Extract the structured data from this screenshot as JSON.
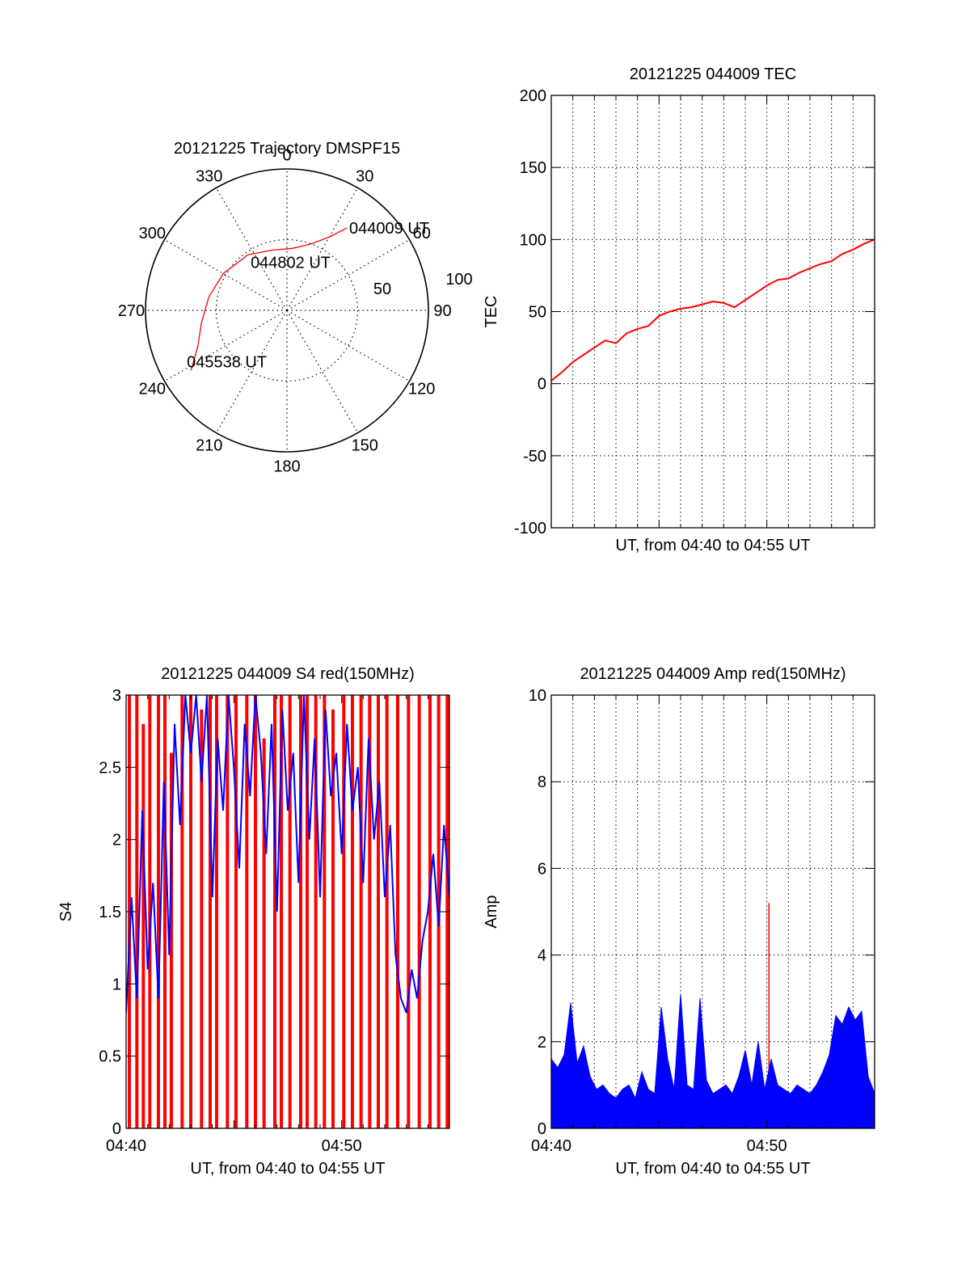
{
  "colors": {
    "red": "#ff0000",
    "blue": "#0000ff",
    "axis": "#000000",
    "grid": "#000000"
  },
  "chart_data": [
    {
      "id": "trajectory",
      "type": "polar",
      "title": "20121225 Trajectory DMSPF15",
      "azimuth_labels": [
        "0",
        "30",
        "60",
        "90",
        "120",
        "150",
        "180",
        "210",
        "240",
        "270",
        "300",
        "330"
      ],
      "azimuths_deg": [
        0,
        30,
        60,
        90,
        120,
        150,
        180,
        210,
        240,
        270,
        300,
        330
      ],
      "zenith_rings_deg": [
        50,
        100
      ],
      "ring_labels": [
        "50",
        "100"
      ],
      "zenith_max_deg": 100,
      "grid": true,
      "series": {
        "color": "#ff0000",
        "points": [
          {
            "az": 36,
            "zen": 72
          },
          {
            "az": 30,
            "zen": 60
          },
          {
            "az": 20,
            "zen": 50
          },
          {
            "az": 5,
            "zen": 44
          },
          {
            "az": 345,
            "zen": 44
          },
          {
            "az": 325,
            "zen": 48
          },
          {
            "az": 300,
            "zen": 52
          },
          {
            "az": 280,
            "zen": 56
          },
          {
            "az": 262,
            "zen": 61
          },
          {
            "az": 248,
            "zen": 68
          },
          {
            "az": 238,
            "zen": 80
          }
        ]
      },
      "annotations": [
        {
          "text": "044009 UT",
          "az": 36,
          "zen": 72
        },
        {
          "text": "044802 UT",
          "az": 10,
          "zen": 20
        },
        {
          "text": "045538 UT",
          "az": 236,
          "zen": 64
        }
      ]
    },
    {
      "id": "tec",
      "type": "line",
      "title": "20121225 044009 TEC",
      "xlabel": "UT, from 04:40 to 04:55 UT",
      "ylabel": "TEC",
      "xlim": [
        0,
        15
      ],
      "ylim": [
        -100,
        200
      ],
      "yticks": [
        -100,
        -50,
        0,
        50,
        100,
        150,
        200
      ],
      "xtick_labels": [],
      "grid": true,
      "series": [
        {
          "color": "#ff0000",
          "x": [
            0,
            0.5,
            1,
            1.5,
            2,
            2.5,
            3,
            3.5,
            4,
            4.5,
            5,
            5.5,
            6,
            6.5,
            7,
            7.5,
            8,
            8.5,
            9,
            9.5,
            10,
            10.5,
            11,
            11.5,
            12,
            12.5,
            13,
            13.5,
            14,
            14.5,
            15
          ],
          "y": [
            2,
            8,
            15,
            20,
            25,
            30,
            28,
            35,
            38,
            40,
            47,
            50,
            52,
            53,
            55,
            57,
            56,
            53,
            58,
            63,
            68,
            72,
            73,
            77,
            80,
            83,
            85,
            90,
            93,
            97,
            100
          ]
        }
      ]
    },
    {
      "id": "s4",
      "type": "line",
      "title": "20121225 044009 S4 red(150MHz)",
      "xlabel": "UT, from 04:40 to 04:55 UT",
      "ylabel": "S4",
      "xlim": [
        0,
        15
      ],
      "ylim": [
        0,
        3
      ],
      "yticks": [
        0,
        0.5,
        1,
        1.5,
        2,
        2.5,
        3
      ],
      "xtick_labels": [
        "04:40",
        "04:50"
      ],
      "xtick_values": [
        0,
        10
      ],
      "grid": false,
      "series": [
        {
          "color": "#ff0000",
          "x": [
            0.15,
            0.5,
            0.8,
            1.1,
            1.5,
            1.8,
            2.1,
            2.6,
            3.0,
            3.5,
            3.9,
            4.2,
            4.7,
            5.1,
            5.6,
            6.0,
            6.4,
            6.9,
            7.2,
            7.6,
            8.1,
            8.4,
            8.8,
            9.2,
            9.6,
            10.1,
            10.5,
            10.9,
            11.3,
            11.7,
            12.1,
            12.6,
            13.1,
            13.6,
            14.1,
            14.5,
            14.9
          ],
          "y": [
            3,
            3,
            2.8,
            3,
            3,
            3,
            2.6,
            3,
            3,
            2.9,
            3,
            3,
            3,
            3,
            3,
            3,
            2.7,
            3,
            3,
            3,
            3,
            3,
            3,
            3,
            2.9,
            3,
            3,
            3,
            3,
            3,
            3,
            3,
            3,
            3,
            3,
            3,
            3
          ]
        },
        {
          "color": "#0000ff",
          "x": [
            0,
            0.25,
            0.5,
            0.75,
            1,
            1.25,
            1.5,
            1.75,
            2,
            2.25,
            2.5,
            2.75,
            3,
            3.25,
            3.5,
            3.75,
            4,
            4.25,
            4.5,
            4.75,
            5,
            5.25,
            5.5,
            5.75,
            6,
            6.25,
            6.5,
            6.75,
            7,
            7.25,
            7.5,
            7.75,
            8,
            8.25,
            8.5,
            8.75,
            9,
            9.25,
            9.5,
            9.75,
            10,
            10.25,
            10.5,
            10.75,
            11,
            11.25,
            11.5,
            11.75,
            12,
            12.25,
            12.5,
            12.75,
            13,
            13.25,
            13.5,
            13.75,
            14,
            14.25,
            14.5,
            14.75,
            15
          ],
          "y": [
            0.8,
            1.6,
            0.9,
            2.2,
            1.1,
            1.7,
            0.9,
            2.4,
            1.2,
            2.8,
            2.1,
            3.0,
            2.6,
            3.0,
            2.4,
            3.0,
            1.6,
            2.7,
            2.2,
            3.0,
            2.5,
            1.8,
            2.8,
            2.3,
            3.0,
            2.6,
            1.9,
            2.8,
            1.5,
            2.9,
            2.2,
            2.6,
            1.7,
            3.0,
            2.0,
            2.7,
            1.6,
            2.9,
            2.3,
            2.6,
            1.9,
            2.8,
            2.2,
            2.5,
            1.7,
            2.7,
            2.0,
            2.4,
            1.6,
            2.1,
            1.2,
            0.9,
            0.8,
            1.1,
            0.9,
            1.3,
            1.5,
            1.9,
            1.4,
            2.1,
            1.6
          ]
        }
      ]
    },
    {
      "id": "amp",
      "type": "line",
      "title": "20121225 044009 Amp red(150MHz)",
      "xlabel": "UT, from 04:40 to 04:55 UT",
      "ylabel": "Amp",
      "xlim": [
        0,
        15
      ],
      "ylim": [
        0,
        10
      ],
      "yticks": [
        0,
        2,
        4,
        6,
        8,
        10
      ],
      "xtick_labels": [
        "04:40",
        "04:50"
      ],
      "xtick_values": [
        0,
        10
      ],
      "grid": true,
      "series": [
        {
          "color": "#ff0000",
          "x": [
            10.1,
            10.1
          ],
          "y": [
            0,
            5.2
          ]
        },
        {
          "color": "#0000ff",
          "x": [
            0,
            0.3,
            0.6,
            0.9,
            1.2,
            1.5,
            1.8,
            2.1,
            2.4,
            2.7,
            3.0,
            3.3,
            3.6,
            3.9,
            4.2,
            4.5,
            4.8,
            5.1,
            5.4,
            5.7,
            6.0,
            6.3,
            6.6,
            6.9,
            7.2,
            7.5,
            7.8,
            8.1,
            8.4,
            8.7,
            9.0,
            9.3,
            9.6,
            9.9,
            10.2,
            10.5,
            10.8,
            11.1,
            11.4,
            11.7,
            12.0,
            12.3,
            12.6,
            12.9,
            13.2,
            13.5,
            13.8,
            14.1,
            14.4,
            14.7,
            15.0
          ],
          "y": [
            1.6,
            1.4,
            1.7,
            2.9,
            1.5,
            1.9,
            1.2,
            0.9,
            1.0,
            0.8,
            0.7,
            0.9,
            1.0,
            0.7,
            1.3,
            0.9,
            0.8,
            2.8,
            1.6,
            0.9,
            3.1,
            1.0,
            0.9,
            3.0,
            1.1,
            0.8,
            0.9,
            1.0,
            0.8,
            1.2,
            1.8,
            1.0,
            2.0,
            0.9,
            1.6,
            1.0,
            0.9,
            0.8,
            1.0,
            0.9,
            0.8,
            1.0,
            1.3,
            1.7,
            2.6,
            2.4,
            2.8,
            2.5,
            2.7,
            1.2,
            0.8
          ]
        }
      ]
    }
  ]
}
